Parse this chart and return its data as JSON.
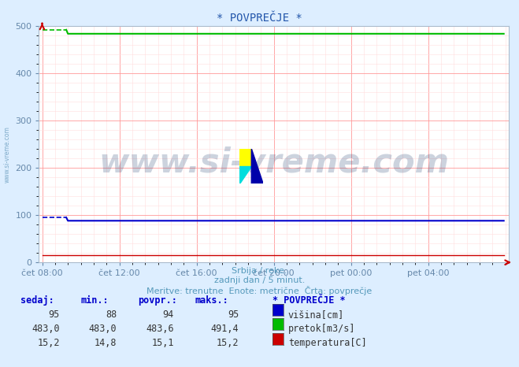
{
  "title": "* POVPREČJE *",
  "bg_color": "#ddeeff",
  "plot_bg_color": "#ffffff",
  "grid_color_major": "#ff9999",
  "grid_color_minor": "#ffdddd",
  "tick_color": "#6688aa",
  "ylabel_ticks": [
    0,
    100,
    200,
    300,
    400,
    500
  ],
  "ylim": [
    0,
    500
  ],
  "xlim": [
    0,
    288
  ],
  "x_tick_positions": [
    0,
    48,
    96,
    144,
    192,
    240
  ],
  "x_tick_labels": [
    "čet 08:00",
    "čet 12:00",
    "čet 16:00",
    "čet 20:00",
    "pet 00:00",
    "pet 04:00"
  ],
  "watermark": "www.si-vreme.com",
  "watermark_color": "#1a3a6a",
  "watermark_alpha": 0.22,
  "subtitle_lines": [
    "Srbija / reke.",
    "zadnji dan / 5 minut.",
    "Meritve: trenutne  Enote: metrične  Črta: povprečje"
  ],
  "subtitle_color": "#5599bb",
  "legend_header": "* POVPREČJE *",
  "legend_rows": [
    {
      "sedaj": "95",
      "min": "88",
      "povpr": "94",
      "maks": "95",
      "color": "#0000cc",
      "label": "višina[cm]"
    },
    {
      "sedaj": "483,0",
      "min": "483,0",
      "povpr": "483,6",
      "maks": "491,4",
      "color": "#00bb00",
      "label": "pretok[m3/s]"
    },
    {
      "sedaj": "15,2",
      "min": "14,8",
      "povpr": "15,1",
      "maks": "15,2",
      "color": "#cc0000",
      "label": "temperatura[C]"
    }
  ],
  "col_headers": [
    "sedaj:",
    "min.:",
    "povpr.:",
    "maks.:"
  ],
  "col_header_color": "#0000cc",
  "pretok_drop_x": 16,
  "pretok_min": 483.0,
  "pretok_max": 491.4,
  "visina_min": 88,
  "visina_max": 95,
  "temperatura_value": 15.2,
  "line_color_visina": "#0000cc",
  "line_color_pretok": "#00bb00",
  "line_color_temp": "#cc0000",
  "arrow_color": "#cc0000",
  "sidebar_text": "www.si-vreme.com",
  "sidebar_color": "#6699bb",
  "logo_colors": [
    "#ffff00",
    "#00dddd",
    "#0000aa"
  ]
}
